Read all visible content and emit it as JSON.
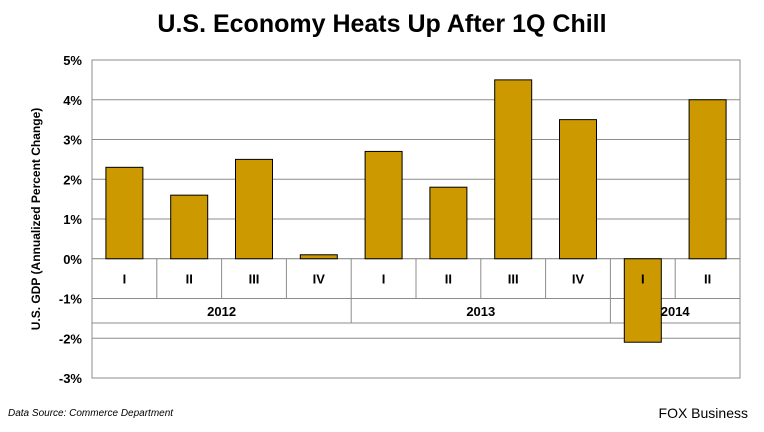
{
  "chart_data": {
    "type": "bar",
    "title": "U.S. Economy Heats Up After 1Q Chill",
    "ylabel": "U.S. GDP (Annualized  Percent Change)",
    "xlabel": "",
    "ylim": [
      -3,
      5
    ],
    "y_ticks": [
      "5%",
      "4%",
      "3%",
      "2%",
      "1%",
      "0%",
      "-1%",
      "-2%",
      "-3%"
    ],
    "grid": true,
    "categories": [
      "I",
      "II",
      "III",
      "IV",
      "I",
      "II",
      "III",
      "IV",
      "I",
      "II"
    ],
    "groups": [
      {
        "label": "2012",
        "count": 4
      },
      {
        "label": "2013",
        "count": 4
      },
      {
        "label": "2014",
        "count": 2
      }
    ],
    "values": [
      2.3,
      1.6,
      2.5,
      0.1,
      2.7,
      1.8,
      4.5,
      3.5,
      -2.1,
      4.0
    ],
    "bar_color": "#CC9900"
  },
  "footer": {
    "source": "Data Source: Commerce Department",
    "brand": "FOX Business"
  }
}
